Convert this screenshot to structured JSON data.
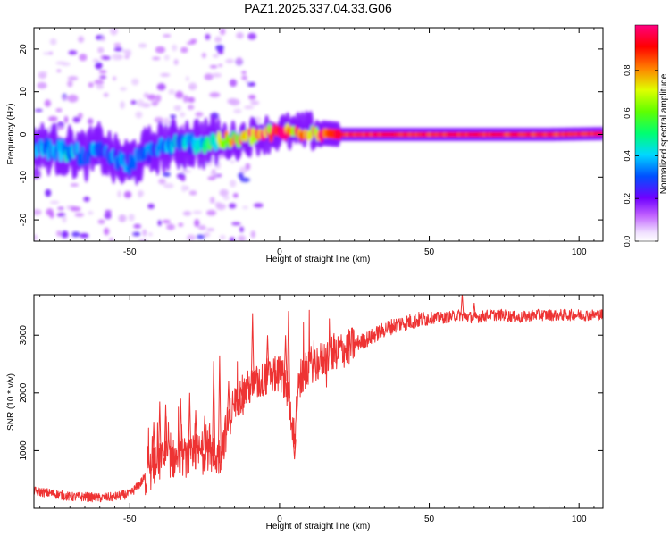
{
  "title": "PAZ1.2025.337.04.33.G06",
  "chart_data": [
    {
      "type": "heatmap",
      "name": "spectrogram",
      "xlabel": "Height of straight line (km)",
      "ylabel": "Frequency (Hz)",
      "xlim": [
        -82,
        108
      ],
      "ylim": [
        -25,
        25
      ],
      "xticks": [
        -50,
        0,
        50,
        100
      ],
      "xtick_labels": [
        "-50",
        "0",
        "50",
        "100"
      ],
      "yticks": [
        20,
        10,
        0,
        -10,
        -20
      ],
      "ytick_labels": [
        "20",
        "10",
        "0",
        "-10",
        "-20"
      ],
      "colorbar": {
        "label": "Normalized spectral amplitude",
        "range": [
          0,
          1
        ],
        "ticks": [
          0.0,
          0.2,
          0.4,
          0.6,
          0.8
        ],
        "tick_labels": [
          "0.0",
          "0.2",
          "0.4",
          "0.6",
          "0.8"
        ],
        "colormap": "gist_rainbow"
      },
      "ridge": {
        "heights_km": [
          -82,
          -75,
          -70,
          -65,
          -60,
          -55,
          -50,
          -45,
          -40,
          -35,
          -30,
          -25,
          -20,
          -15,
          -10,
          -5,
          0,
          5,
          10,
          15,
          20,
          30,
          50,
          70,
          90,
          108
        ],
        "frequency_hz": [
          -3,
          -3.5,
          -4,
          -5,
          -3,
          -6,
          -7,
          -4.5,
          -3,
          -2.5,
          -2,
          -2,
          -1.5,
          -1.5,
          -0.5,
          0,
          0.5,
          0.5,
          0.8,
          0.3,
          0,
          0,
          0,
          0,
          0,
          0.2
        ],
        "amplitude": [
          0.3,
          0.35,
          0.35,
          0.3,
          0.35,
          0.3,
          0.3,
          0.3,
          0.3,
          0.35,
          0.35,
          0.45,
          0.55,
          0.8,
          0.9,
          0.9,
          0.9,
          0.85,
          0.85,
          0.85,
          0.9,
          0.9,
          0.9,
          0.9,
          0.9,
          0.9
        ]
      }
    },
    {
      "type": "line",
      "name": "snr",
      "xlabel": "Height of straight line (km)",
      "ylabel": "SNR (10 * v/v)",
      "xlim": [
        -82,
        108
      ],
      "ylim": [
        0,
        3700
      ],
      "xticks": [
        -50,
        0,
        50,
        100
      ],
      "xtick_labels": [
        "-50",
        "0",
        "50",
        "100"
      ],
      "yticks": [
        1000,
        2000,
        3000
      ],
      "ytick_labels": [
        "1000",
        "2000",
        "3000"
      ],
      "color": "#ee3333",
      "x": [
        -82,
        -75,
        -70,
        -65,
        -60,
        -55,
        -50,
        -47,
        -44,
        -42,
        -40,
        -38,
        -35,
        -32,
        -30,
        -28,
        -25,
        -22,
        -20,
        -18,
        -16,
        -14,
        -12,
        -10,
        -8,
        -6,
        -4,
        -2,
        0,
        2,
        4,
        5,
        6,
        8,
        10,
        12,
        15,
        18,
        20,
        22,
        25,
        28,
        30,
        35,
        40,
        45,
        50,
        55,
        60,
        65,
        70,
        75,
        80,
        85,
        90,
        95,
        100,
        105,
        108
      ],
      "y": [
        300,
        250,
        200,
        200,
        180,
        200,
        250,
        400,
        600,
        700,
        800,
        900,
        850,
        900,
        850,
        950,
        1000,
        900,
        900,
        1300,
        1700,
        1900,
        2000,
        2100,
        2150,
        2200,
        2300,
        2300,
        2350,
        2200,
        1600,
        1200,
        2000,
        2300,
        2500,
        2500,
        2600,
        2700,
        2750,
        2750,
        2850,
        2900,
        2950,
        3100,
        3200,
        3250,
        3300,
        3300,
        3350,
        3300,
        3350,
        3350,
        3300,
        3350,
        3350,
        3350,
        3350,
        3350,
        3350
      ],
      "spikes": [
        {
          "x": -42,
          "y": 1500
        },
        {
          "x": -40,
          "y": 1850
        },
        {
          "x": -38,
          "y": 1800
        },
        {
          "x": -33,
          "y": 1900
        },
        {
          "x": -30,
          "y": 2000
        },
        {
          "x": -28,
          "y": 1700
        },
        {
          "x": -25,
          "y": 1600
        },
        {
          "x": -22,
          "y": 2550
        },
        {
          "x": -20,
          "y": 2650
        },
        {
          "x": -17,
          "y": 2200
        },
        {
          "x": -13,
          "y": 2100
        },
        {
          "x": -9,
          "y": 3380
        },
        {
          "x": -4,
          "y": 3000
        },
        {
          "x": 2,
          "y": 3000
        },
        {
          "x": 3,
          "y": 3420
        },
        {
          "x": 5,
          "y": 850
        },
        {
          "x": 61,
          "y": 3720
        },
        {
          "x": 65,
          "y": 3560
        }
      ]
    }
  ]
}
